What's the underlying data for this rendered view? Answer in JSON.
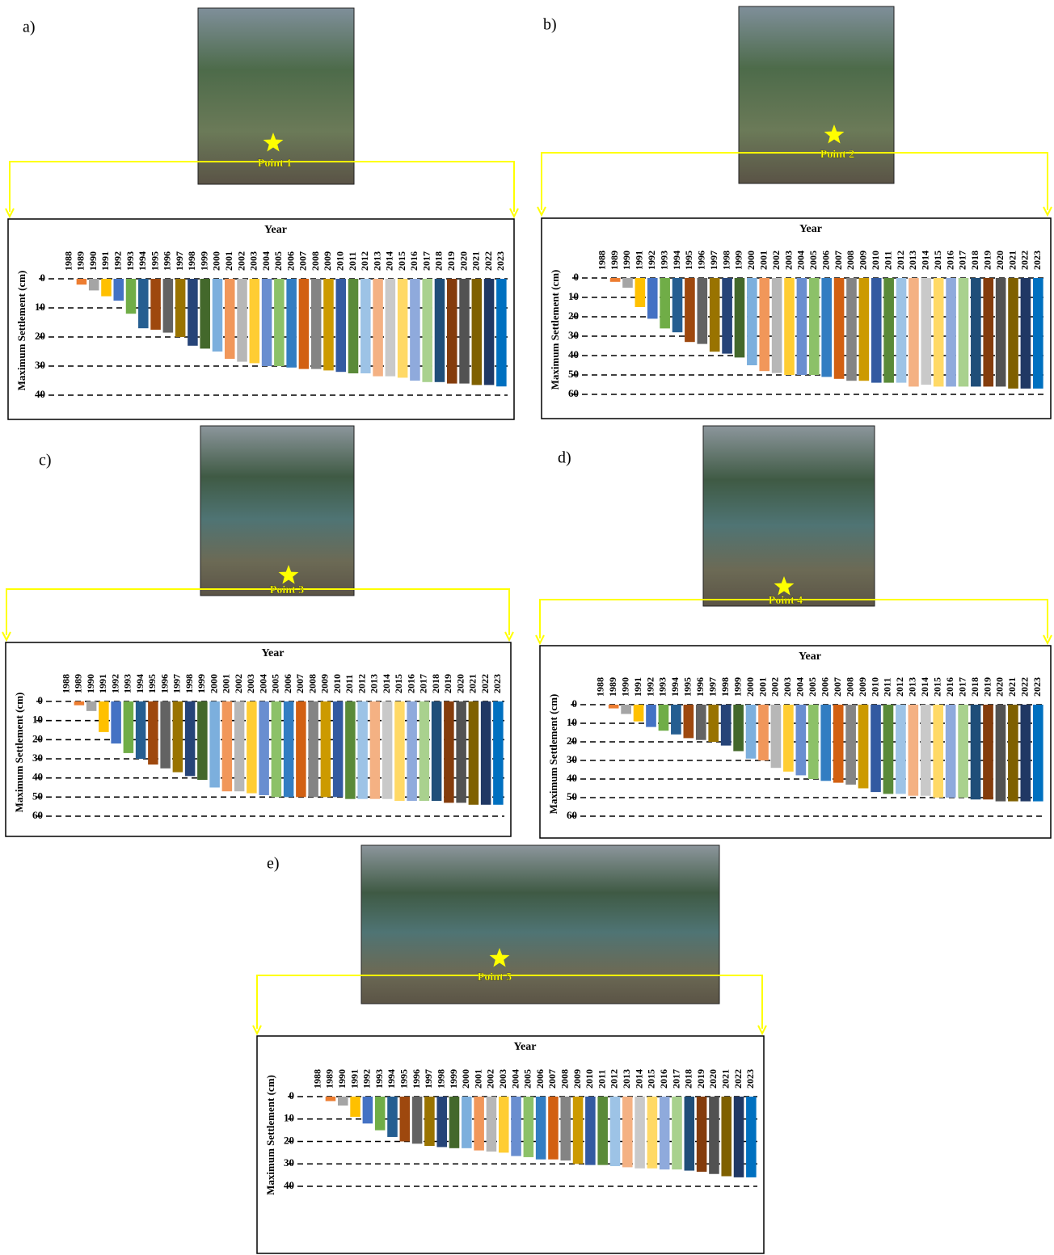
{
  "bar_colors": [
    "#5b9bd5",
    "#ed7d31",
    "#a5a5a5",
    "#ffc000",
    "#4472c4",
    "#70ad47",
    "#255e91",
    "#9e480e",
    "#636363",
    "#997300",
    "#264478",
    "#43682b",
    "#7cafdd",
    "#f1975a",
    "#b7b7b7",
    "#ffcd33",
    "#698ed0",
    "#8cc168",
    "#327dc2",
    "#d26012",
    "#848484",
    "#cc9a00",
    "#335aa1",
    "#5a8a39",
    "#9dc3e6",
    "#f4b183",
    "#c9c9c9",
    "#ffd966",
    "#8faadc",
    "#a9d18e",
    "#1f4e79",
    "#843c0c",
    "#525252",
    "#7f6000",
    "#203864",
    "#0070c0"
  ],
  "chart_data": [
    {
      "type": "bar",
      "panel": "a)",
      "photo_label": "Point 1",
      "x_label": "Year",
      "y_label": "Maximum Settlement (cm)",
      "categories": [
        "1988",
        "1989",
        "1990",
        "1991",
        "1992",
        "1993",
        "1994",
        "1995",
        "1996",
        "1997",
        "1998",
        "1999",
        "2000",
        "2001",
        "2002",
        "2003",
        "2004",
        "2005",
        "2006",
        "2007",
        "2008",
        "2009",
        "2010",
        "2011",
        "2012",
        "2013",
        "2014",
        "2015",
        "2016",
        "2017",
        "2018",
        "2019",
        "2020",
        "2021",
        "2022",
        "2023"
      ],
      "values": [
        0,
        2,
        4,
        6,
        7.5,
        12,
        17,
        17.5,
        18.5,
        20,
        23,
        24,
        25,
        27.5,
        28.5,
        29,
        30,
        30,
        30.5,
        31,
        31,
        31.5,
        32,
        32.5,
        32.5,
        33.5,
        33.5,
        34,
        35,
        35.5,
        35.5,
        36,
        36,
        36.5,
        36.5,
        37
      ],
      "ylim": [
        0,
        40
      ],
      "yticks": [
        0,
        10,
        20,
        30,
        40
      ],
      "y_inverted": true,
      "grid": "dashed"
    },
    {
      "type": "bar",
      "panel": "b)",
      "photo_label": "Point 2",
      "x_label": "Year",
      "y_label": "Maximum Settlement (cm)",
      "categories": [
        "1988",
        "1989",
        "1990",
        "1991",
        "1992",
        "1993",
        "1994",
        "1995",
        "1996",
        "1997",
        "1998",
        "1999",
        "2000",
        "2001",
        "2002",
        "2003",
        "2004",
        "2005",
        "2006",
        "2007",
        "2008",
        "2009",
        "2010",
        "2011",
        "2012",
        "2013",
        "2014",
        "2015",
        "2016",
        "2017",
        "2018",
        "2019",
        "2020",
        "2021",
        "2022",
        "2023"
      ],
      "values": [
        0,
        2,
        5,
        15,
        21,
        26,
        28,
        33,
        34,
        38,
        39,
        41,
        45,
        48,
        49,
        50,
        50,
        50,
        51,
        52,
        53,
        53,
        54,
        54,
        54,
        56,
        55,
        56,
        56,
        56,
        56,
        56,
        56,
        57,
        57,
        57
      ],
      "ylim": [
        0,
        60
      ],
      "yticks": [
        0,
        10,
        20,
        30,
        40,
        50,
        60
      ],
      "y_inverted": true,
      "grid": "dashed"
    },
    {
      "type": "bar",
      "panel": "c)",
      "photo_label": "Point 3",
      "x_label": "Year",
      "y_label": "Maximum Settlement (cm)",
      "categories": [
        "1988",
        "1989",
        "1990",
        "1991",
        "1992",
        "1993",
        "1994",
        "1995",
        "1996",
        "1997",
        "1998",
        "1999",
        "2000",
        "2001",
        "2002",
        "2003",
        "2004",
        "2005",
        "2006",
        "2007",
        "2008",
        "2009",
        "2010",
        "2011",
        "2012",
        "2013",
        "2014",
        "2015",
        "2016",
        "2017",
        "2018",
        "2019",
        "2020",
        "2021",
        "2022",
        "2023"
      ],
      "values": [
        0,
        2,
        5,
        16,
        22,
        27,
        30,
        33,
        35,
        37,
        39,
        41,
        45,
        47,
        47,
        48,
        49,
        50,
        50,
        50,
        50,
        50,
        50,
        51,
        51,
        51,
        51,
        52,
        52,
        52,
        52,
        53,
        53,
        54,
        54,
        54
      ],
      "ylim": [
        0,
        60
      ],
      "yticks": [
        0,
        10,
        20,
        30,
        40,
        50,
        60
      ],
      "y_inverted": true,
      "grid": "dashed"
    },
    {
      "type": "bar",
      "panel": "d)",
      "photo_label": "Point 4",
      "x_label": "Year",
      "y_label": "Maximum Settlement (cm)",
      "categories": [
        "1988",
        "1989",
        "1990",
        "1991",
        "1992",
        "1993",
        "1994",
        "1995",
        "1996",
        "1997",
        "1998",
        "1999",
        "2000",
        "2001",
        "2002",
        "2003",
        "2004",
        "2005",
        "2006",
        "2007",
        "2008",
        "2009",
        "2010",
        "2011",
        "2012",
        "2013",
        "2014",
        "2015",
        "2016",
        "2017",
        "2018",
        "2019",
        "2020",
        "2021",
        "2022",
        "2023"
      ],
      "values": [
        0,
        2,
        5,
        9,
        12,
        14,
        16,
        18,
        19,
        20,
        22,
        25,
        29,
        30,
        34,
        36,
        38,
        40,
        41,
        42,
        43,
        45,
        47,
        48,
        48,
        49,
        49,
        50,
        50,
        50,
        51,
        51,
        52,
        52,
        52,
        52
      ],
      "ylim": [
        0,
        60
      ],
      "yticks": [
        0,
        10,
        20,
        30,
        40,
        50,
        60
      ],
      "y_inverted": true,
      "grid": "dashed"
    },
    {
      "type": "bar",
      "panel": "e)",
      "photo_label": "Point 5",
      "x_label": "Year",
      "y_label": "Maximum Settlement (cm)",
      "categories": [
        "1988",
        "1989",
        "1990",
        "1991",
        "1992",
        "1993",
        "1994",
        "1995",
        "1996",
        "1997",
        "1998",
        "1999",
        "2000",
        "2001",
        "2002",
        "2003",
        "2004",
        "2005",
        "2006",
        "2007",
        "2008",
        "2009",
        "2010",
        "2011",
        "2012",
        "2013",
        "2014",
        "2015",
        "2016",
        "2017",
        "2018",
        "2019",
        "2020",
        "2021",
        "2022",
        "2023"
      ],
      "values": [
        0,
        2,
        4,
        9,
        12,
        15,
        18,
        20,
        21,
        22,
        22.5,
        23,
        23,
        24,
        24.5,
        25,
        26.5,
        27,
        28,
        28,
        28.5,
        30,
        30.5,
        30.5,
        31,
        31.5,
        32,
        32,
        32.5,
        32.5,
        33,
        33.5,
        34.5,
        35.5,
        36,
        36
      ],
      "ylim": [
        0,
        40
      ],
      "yticks": [
        0,
        10,
        20,
        30,
        40
      ],
      "y_inverted": true,
      "grid": "dashed"
    }
  ]
}
